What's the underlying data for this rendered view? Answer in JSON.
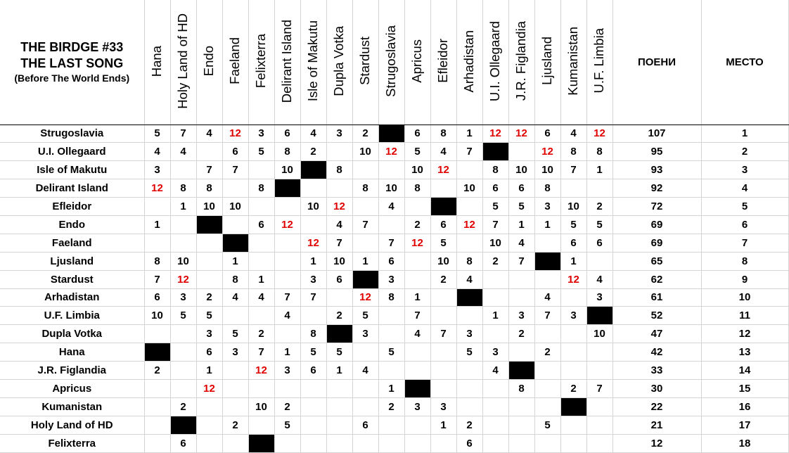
{
  "title": {
    "line1": "THE BIRDGE #33",
    "line2": "THE LAST SONG",
    "line3": "(Before The World Ends)"
  },
  "columns": [
    "Hana",
    "Holy Land of HD",
    "Endo",
    "Faeland",
    "Felixterra",
    "Delirant Island",
    "Isle of Makutu",
    "Dupla Votka",
    "Stardust",
    "Strugoslavia",
    "Apricus",
    "Efleidor",
    "Arhadistan",
    "U.I. Ollegaard",
    "J.R. Figlandia",
    "Ljusland",
    "Kumanistan",
    "U.F. Limbia"
  ],
  "points_header": "ПОЕНИ",
  "place_header": "МЕСТО",
  "highlight_color": "#e00000",
  "rows": [
    {
      "country": "Strugoslavia",
      "votes": [
        "5",
        "7",
        "4",
        "12",
        "3",
        "6",
        "4",
        "3",
        "2",
        "",
        "6",
        "8",
        "1",
        "12",
        "12",
        "6",
        "4",
        "12"
      ],
      "points": "107",
      "place": "1"
    },
    {
      "country": "U.I. Ollegaard",
      "votes": [
        "4",
        "4",
        "",
        "6",
        "5",
        "8",
        "2",
        "",
        "10",
        "12",
        "5",
        "4",
        "7",
        "",
        "",
        "12",
        "8",
        "8"
      ],
      "points": "95",
      "place": "2"
    },
    {
      "country": "Isle of Makutu",
      "votes": [
        "3",
        "",
        "7",
        "7",
        "",
        "10",
        "",
        "8",
        "",
        "",
        "10",
        "12",
        "",
        "8",
        "10",
        "10",
        "7",
        "1"
      ],
      "points": "93",
      "place": "3"
    },
    {
      "country": "Delirant Island",
      "votes": [
        "12",
        "8",
        "8",
        "",
        "8",
        "",
        "",
        "",
        "8",
        "10",
        "8",
        "",
        "10",
        "6",
        "6",
        "8",
        "",
        ""
      ],
      "points": "92",
      "place": "4"
    },
    {
      "country": "Efleidor",
      "votes": [
        "",
        "1",
        "10",
        "10",
        "",
        "",
        "10",
        "12",
        "",
        "4",
        "",
        "",
        "",
        "5",
        "5",
        "3",
        "10",
        "2"
      ],
      "points": "72",
      "place": "5"
    },
    {
      "country": "Endo",
      "votes": [
        "1",
        "",
        "",
        "",
        "6",
        "12",
        "",
        "4",
        "7",
        "",
        "2",
        "6",
        "12",
        "7",
        "1",
        "1",
        "5",
        "5"
      ],
      "points": "69",
      "place": "6"
    },
    {
      "country": "Faeland",
      "votes": [
        "",
        "",
        "",
        "",
        "",
        "",
        "12",
        "7",
        "",
        "7",
        "12",
        "5",
        "",
        "10",
        "4",
        "",
        "6",
        "6"
      ],
      "points": "69",
      "place": "7"
    },
    {
      "country": "Ljusland",
      "votes": [
        "8",
        "10",
        "",
        "1",
        "",
        "",
        "1",
        "10",
        "1",
        "6",
        "",
        "10",
        "8",
        "2",
        "7",
        "",
        "1",
        ""
      ],
      "points": "65",
      "place": "8"
    },
    {
      "country": "Stardust",
      "votes": [
        "7",
        "12",
        "",
        "8",
        "1",
        "",
        "3",
        "6",
        "",
        "3",
        "",
        "2",
        "4",
        "",
        "",
        "",
        "12",
        "4"
      ],
      "points": "62",
      "place": "9"
    },
    {
      "country": "Arhadistan",
      "votes": [
        "6",
        "3",
        "2",
        "4",
        "4",
        "7",
        "7",
        "",
        "12",
        "8",
        "1",
        "",
        "",
        "",
        "",
        "4",
        "",
        "3"
      ],
      "points": "61",
      "place": "10"
    },
    {
      "country": "U.F. Limbia",
      "votes": [
        "10",
        "5",
        "5",
        "",
        "",
        "4",
        "",
        "2",
        "5",
        "",
        "7",
        "",
        "",
        "1",
        "3",
        "7",
        "3",
        ""
      ],
      "points": "52",
      "place": "11"
    },
    {
      "country": "Dupla Votka",
      "votes": [
        "",
        "",
        "3",
        "5",
        "2",
        "",
        "8",
        "",
        "3",
        "",
        "4",
        "7",
        "3",
        "",
        "2",
        "",
        "",
        "10"
      ],
      "points": "47",
      "place": "12"
    },
    {
      "country": "Hana",
      "votes": [
        "",
        "",
        "6",
        "3",
        "7",
        "1",
        "5",
        "5",
        "",
        "5",
        "",
        "",
        "5",
        "3",
        "",
        "2",
        "",
        ""
      ],
      "points": "42",
      "place": "13"
    },
    {
      "country": "J.R. Figlandia",
      "votes": [
        "2",
        "",
        "1",
        "",
        "12",
        "3",
        "6",
        "1",
        "4",
        "",
        "",
        "",
        "",
        "4",
        "",
        "",
        "",
        ""
      ],
      "points": "33",
      "place": "14"
    },
    {
      "country": "Apricus",
      "votes": [
        "",
        "",
        "12",
        "",
        "",
        "",
        "",
        "",
        "",
        "1",
        "",
        "",
        "",
        "",
        "8",
        "",
        "2",
        "7"
      ],
      "points": "30",
      "place": "15"
    },
    {
      "country": "Kumanistan",
      "votes": [
        "",
        "2",
        "",
        "",
        "10",
        "2",
        "",
        "",
        "",
        "2",
        "3",
        "3",
        "",
        "",
        "",
        "",
        "",
        ""
      ],
      "points": "22",
      "place": "16"
    },
    {
      "country": "Holy Land of HD",
      "votes": [
        "",
        "",
        "",
        "2",
        "",
        "5",
        "",
        "",
        "6",
        "",
        "",
        "1",
        "2",
        "",
        "",
        "5",
        "",
        ""
      ],
      "points": "21",
      "place": "17"
    },
    {
      "country": "Felixterra",
      "votes": [
        "",
        "6",
        "",
        "",
        "",
        "",
        "",
        "",
        "",
        "",
        "",
        "",
        "6",
        "",
        "",
        "",
        "",
        ""
      ],
      "points": "12",
      "place": "18"
    }
  ]
}
